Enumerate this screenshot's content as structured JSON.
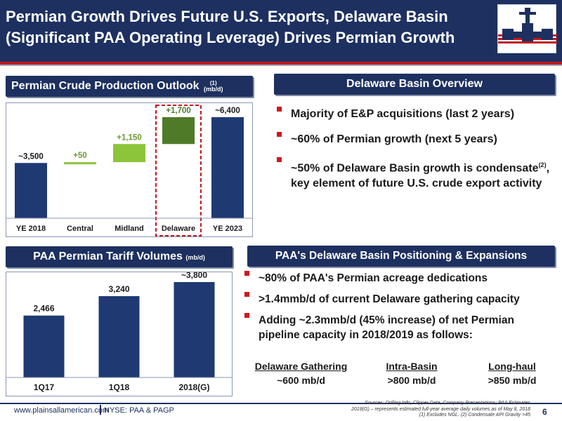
{
  "header": {
    "title_line1": "Permian Growth Drives Future U.S. Exports, Delaware Basin",
    "title_line2": "(Significant PAA Operating Leverage) Drives Permian Growth"
  },
  "left_top": {
    "title": "Permian Crude Production Outlook",
    "sup": "(1)",
    "unit": "(mb/d)"
  },
  "right_top": {
    "title": "Delaware Basin Overview",
    "bullets": [
      {
        "text": "Majority of E&P acquisitions (last 2 years)"
      },
      {
        "text": "~60% of Permian growth (next 5 years)"
      },
      {
        "pre": "~50% of Delaware Basin growth is condensate",
        "sup": "(2)",
        "post": ", key element of future U.S. crude export activity"
      }
    ]
  },
  "left_bottom": {
    "title": "PAA Permian Tariff Volumes",
    "unit": "(mb/d)"
  },
  "right_bottom": {
    "title": "PAA's Delaware Basin Positioning & Expansions",
    "bullets": [
      "~80% of PAA's Permian acreage dedications",
      ">1.4mmb/d of current Delaware gathering capacity",
      "Adding ~2.3mmb/d (45% increase) of net Permian pipeline capacity in 2018/2019 as follows:"
    ],
    "capacity": [
      {
        "label": "Delaware Gathering",
        "value": "~600 mb/d"
      },
      {
        "label": "Intra-Basin",
        "value": ">800 mb/d"
      },
      {
        "label": "Long-haul",
        "value": ">850 mb/d"
      }
    ]
  },
  "footer": {
    "url": "www.plainsallamerican.com",
    "ticker": "NYSE: PAA & PAGP",
    "sources_line1": "Sources:  Drilling Info, Clipper Data, Company Presentations; PAA Estimates",
    "sources_line2": "2018(G) – represents estimated full-year average daily volumes as of May 8, 2018",
    "sources_line3": "(1) Excludes NGL. (2) Condensate API Gravity >45",
    "page": "6"
  },
  "colors": {
    "navy": "#1d3060",
    "red": "#c0181f",
    "green_dark": "#4f7a28",
    "green_light": "#8cc43a",
    "bar_navy": "#1f3a73"
  },
  "chart_data": [
    {
      "type": "bar",
      "subtype": "waterfall",
      "title": "Permian Crude Production Outlook (1) (mb/d)",
      "categories": [
        "YE 2018",
        "Central",
        "Midland",
        "Delaware",
        "YE 2023"
      ],
      "values": [
        3500,
        50,
        1150,
        1700,
        6400
      ],
      "labels": [
        "~3,500",
        "+50",
        "+1,150",
        "+1,700",
        "~6,400"
      ],
      "highlight": "Delaware",
      "ylim": [
        0,
        6400
      ]
    },
    {
      "type": "bar",
      "title": "PAA Permian Tariff Volumes (mb/d)",
      "categories": [
        "1Q17",
        "1Q18",
        "2018(G)"
      ],
      "values": [
        2466,
        3240,
        3800
      ],
      "labels": [
        "2,466",
        "3,240",
        "~3,800"
      ],
      "ylim": [
        0,
        3800
      ]
    }
  ]
}
